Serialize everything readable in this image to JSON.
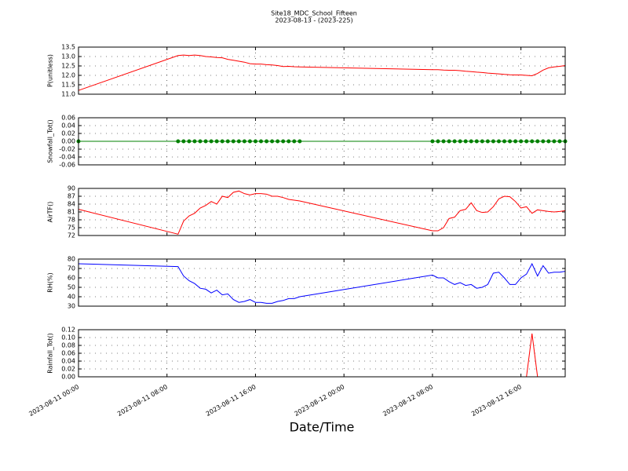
{
  "chart_data": {
    "type": "line",
    "title": "Site18_MDC_School_Fifteen",
    "subtitle": "2023-08-13 - (2023-225)",
    "xlabel": "Date/Time",
    "grid": true,
    "xlim": [
      "2023-08-11 00:00",
      "2023-08-12 20:00"
    ],
    "xticks": [
      "2023-08-11 00:00",
      "2023-08-11 08:00",
      "2023-08-11 16:00",
      "2023-08-12 00:00",
      "2023-08-12 08:00",
      "2023-08-12 16:00"
    ],
    "x": [
      "2023-08-11 00:00",
      "2023-08-11 09:00",
      "2023-08-11 09:30",
      "2023-08-11 10:00",
      "2023-08-11 10:30",
      "2023-08-11 11:00",
      "2023-08-11 11:30",
      "2023-08-11 12:00",
      "2023-08-11 12:30",
      "2023-08-11 13:00",
      "2023-08-11 13:30",
      "2023-08-11 14:00",
      "2023-08-11 14:30",
      "2023-08-11 15:00",
      "2023-08-11 15:30",
      "2023-08-11 16:00",
      "2023-08-11 16:30",
      "2023-08-11 17:00",
      "2023-08-11 17:30",
      "2023-08-11 18:00",
      "2023-08-11 18:30",
      "2023-08-11 19:00",
      "2023-08-11 19:30",
      "2023-08-11 20:00",
      "2023-08-12 08:00",
      "2023-08-12 08:30",
      "2023-08-12 09:00",
      "2023-08-12 09:30",
      "2023-08-12 10:00",
      "2023-08-12 10:30",
      "2023-08-12 11:00",
      "2023-08-12 11:30",
      "2023-08-12 12:00",
      "2023-08-12 12:30",
      "2023-08-12 13:00",
      "2023-08-12 13:30",
      "2023-08-12 14:00",
      "2023-08-12 14:30",
      "2023-08-12 15:00",
      "2023-08-12 15:30",
      "2023-08-12 16:00",
      "2023-08-12 16:30",
      "2023-08-12 17:00",
      "2023-08-12 17:30",
      "2023-08-12 18:00",
      "2023-08-12 18:30",
      "2023-08-12 19:00",
      "2023-08-12 19:30",
      "2023-08-12 20:00"
    ],
    "panels": [
      {
        "ylabel": "P(unitless)",
        "ylim": [
          11.0,
          13.5
        ],
        "yticks": [
          {
            "value": 11,
            "label": "11.0"
          },
          11.5,
          {
            "value": 12,
            "label": "12.0"
          },
          12.5,
          {
            "value": 13,
            "label": "13.0"
          },
          13.5
        ],
        "series": [
          {
            "color": "#ff0000",
            "marker": false,
            "values": [
              11.2,
              13.05,
              13.08,
              13.05,
              13.08,
              13.05,
              13.0,
              12.98,
              12.95,
              12.93,
              12.85,
              12.8,
              12.75,
              12.7,
              12.62,
              12.6,
              12.6,
              12.57,
              12.55,
              12.52,
              12.47,
              12.48,
              12.46,
              12.45,
              12.3,
              12.3,
              12.28,
              12.27,
              12.27,
              12.25,
              12.22,
              12.2,
              12.17,
              12.15,
              12.12,
              12.1,
              12.08,
              12.05,
              12.03,
              12.02,
              12.02,
              12.0,
              11.98,
              12.1,
              12.28,
              12.4,
              12.45,
              12.48,
              12.52
            ]
          }
        ]
      },
      {
        "ylabel": "Snowfall_Tot()",
        "ylim": [
          -0.06,
          0.06
        ],
        "yticks": [
          -0.06,
          -0.04,
          -0.02,
          {
            "value": 0,
            "label": "0.00"
          },
          0.02,
          0.04,
          0.06
        ],
        "series": [
          {
            "color": "#008000",
            "marker": true,
            "values": [
              0,
              0,
              0,
              0,
              0,
              0,
              0,
              0,
              0,
              0,
              0,
              0,
              0,
              0,
              0,
              0,
              0,
              0,
              0,
              0,
              0,
              0,
              0,
              0,
              0,
              0,
              0,
              0,
              0,
              0,
              0,
              0,
              0,
              0,
              0,
              0,
              0,
              0,
              0,
              0,
              0,
              0,
              0,
              0,
              0,
              0,
              0,
              0,
              0
            ]
          }
        ]
      },
      {
        "ylabel": "AirTF()",
        "ylim": [
          72,
          90
        ],
        "yticks": [
          72,
          75,
          78,
          81,
          84,
          87,
          90
        ],
        "series": [
          {
            "color": "#ff0000",
            "marker": false,
            "values": [
              82,
              72.5,
              77.5,
              79.5,
              80.5,
              82.5,
              83.5,
              85,
              84,
              87,
              86.5,
              88.5,
              89,
              88,
              87.5,
              88,
              88,
              87.8,
              87,
              87,
              86.5,
              85.8,
              85.5,
              85.2,
              73.8,
              73.8,
              75,
              78.5,
              79,
              81.5,
              82,
              84.5,
              81.5,
              80.8,
              81,
              83,
              86,
              87,
              86.8,
              85,
              82.5,
              83,
              80.5,
              81.8,
              81.5,
              81.2,
              81,
              81.2,
              81.5
            ]
          }
        ]
      },
      {
        "ylabel": "RH(%)",
        "ylim": [
          30,
          80
        ],
        "yticks": [
          30,
          40,
          50,
          60,
          70,
          80
        ],
        "series": [
          {
            "color": "#0000ff",
            "marker": false,
            "values": [
              75,
              72,
              62,
              57,
              54,
              49,
              48,
              44,
              47,
              42,
              43,
              37,
              34,
              35,
              37,
              34,
              34,
              33,
              33,
              35,
              36,
              38,
              38,
              40,
              63,
              60,
              60,
              56,
              53,
              55,
              52,
              53,
              49,
              50,
              53,
              65,
              66,
              60,
              53,
              53,
              60,
              64,
              75,
              62,
              73,
              65,
              66,
              66,
              67
            ]
          }
        ]
      },
      {
        "ylabel": "Rainfall_Tot()",
        "ylim": [
          0,
          0.12
        ],
        "yticks": [
          {
            "value": 0,
            "label": "0.00"
          },
          0.02,
          0.04,
          0.06,
          0.08,
          {
            "value": 0.1,
            "label": "0.10"
          },
          0.12
        ],
        "series": [
          {
            "color": "#ff0000",
            "marker": false,
            "values": [
              0,
              0,
              0,
              0,
              0,
              0,
              0,
              0,
              0,
              0,
              0,
              0,
              0,
              0,
              0,
              0,
              0,
              0,
              0,
              0,
              0,
              0,
              0,
              0,
              0,
              0,
              0,
              0,
              0,
              0,
              0,
              0,
              0,
              0,
              0,
              0,
              0,
              0,
              0,
              0,
              0,
              0,
              0.11,
              0,
              0,
              0,
              0,
              0,
              0
            ]
          }
        ]
      }
    ]
  }
}
